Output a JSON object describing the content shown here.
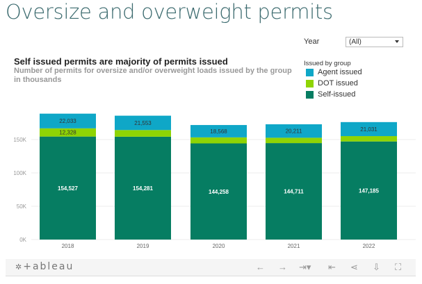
{
  "page": {
    "title": "Oversize and overweight permits"
  },
  "filter": {
    "label": "Year",
    "value": "(All)"
  },
  "legend": {
    "title": "Issued by group",
    "items": [
      {
        "label": "Agent issued",
        "color": "#0fa7c7"
      },
      {
        "label": "DOT issued",
        "color": "#8fd404"
      },
      {
        "label": "Self-issued",
        "color": "#067d62"
      }
    ]
  },
  "toolbar": {
    "logo": "+ableau",
    "icons": [
      "undo-icon",
      "redo-icon",
      "revert-icon",
      "revert-all-icon",
      "share-icon",
      "download-icon",
      "fullscreen-icon"
    ]
  },
  "chart_data": {
    "type": "bar",
    "stacked": true,
    "title": "Self issued permits are majority of permits issued",
    "subtitle": "Number of permits for oversize and/or overweight loads issued by the group in thousands",
    "categories": [
      "2018",
      "2019",
      "2020",
      "2021",
      "2022"
    ],
    "series": [
      {
        "name": "Self-issued",
        "color": "#067d62",
        "values": [
          154527,
          154281,
          144258,
          144711,
          147185
        ],
        "labels": [
          "154,527",
          "154,281",
          "144,258",
          "144,711",
          "147,185"
        ]
      },
      {
        "name": "DOT issued",
        "color": "#8fd404",
        "values": [
          12328,
          10000,
          9000,
          8000,
          8000
        ],
        "labels": [
          "12,328",
          "",
          "",
          "",
          ""
        ]
      },
      {
        "name": "Agent issued",
        "color": "#0fa7c7",
        "values": [
          22033,
          21553,
          18568,
          20211,
          21031
        ],
        "labels": [
          "22,033",
          "21,553",
          "18,568",
          "20,211",
          "21,031"
        ]
      }
    ],
    "yticks": [
      0,
      50000,
      100000,
      150000
    ],
    "ytick_labels": [
      "0K",
      "50K",
      "100K",
      "150K"
    ],
    "ylim": [
      0,
      200000
    ],
    "grid": true,
    "legend": "right"
  }
}
